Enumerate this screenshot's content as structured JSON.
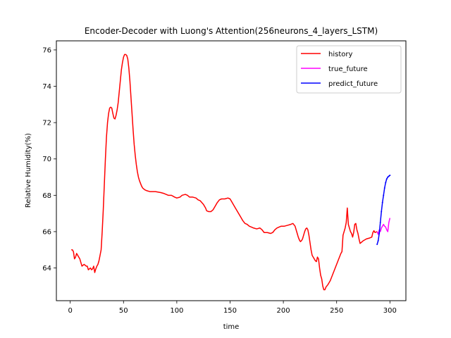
{
  "chart_data": {
    "type": "line",
    "title": "Encoder-Decoder with Luong's Attention(256neurons_4_layers_LSTM)",
    "xlabel": "time",
    "ylabel": "Relative Humidity(%)",
    "xlim": [
      -13,
      315
    ],
    "ylim": [
      62.2,
      76.5
    ],
    "xticks": [
      0,
      50,
      100,
      150,
      200,
      250,
      300
    ],
    "yticks": [
      64,
      66,
      68,
      70,
      72,
      74,
      76
    ],
    "grid": false,
    "legend_position": "top-right",
    "series": [
      {
        "name": "history",
        "color": "#ff0000",
        "points": [
          [
            1,
            65.0
          ],
          [
            2,
            65.0
          ],
          [
            3,
            64.9
          ],
          [
            4,
            64.5
          ],
          [
            5,
            64.6
          ],
          [
            6,
            64.8
          ],
          [
            7,
            64.7
          ],
          [
            8,
            64.6
          ],
          [
            9,
            64.5
          ],
          [
            10,
            64.3
          ],
          [
            11,
            64.1
          ],
          [
            12,
            64.15
          ],
          [
            13,
            64.2
          ],
          [
            14,
            64.15
          ],
          [
            15,
            64.1
          ],
          [
            16,
            64.1
          ],
          [
            17,
            63.9
          ],
          [
            18,
            63.95
          ],
          [
            19,
            64.0
          ],
          [
            20,
            63.9
          ],
          [
            21,
            63.95
          ],
          [
            22,
            64.1
          ],
          [
            23,
            63.75
          ],
          [
            24,
            63.95
          ],
          [
            25,
            64.1
          ],
          [
            26,
            64.2
          ],
          [
            27,
            64.4
          ],
          [
            28,
            64.7
          ],
          [
            29,
            65.0
          ],
          [
            30,
            66.0
          ],
          [
            31,
            67.2
          ],
          [
            32,
            68.6
          ],
          [
            33,
            70.0
          ],
          [
            34,
            71.2
          ],
          [
            35,
            72.0
          ],
          [
            36,
            72.5
          ],
          [
            37,
            72.8
          ],
          [
            38,
            72.85
          ],
          [
            39,
            72.8
          ],
          [
            40,
            72.5
          ],
          [
            41,
            72.25
          ],
          [
            42,
            72.2
          ],
          [
            43,
            72.4
          ],
          [
            44,
            72.7
          ],
          [
            45,
            73.1
          ],
          [
            46,
            73.7
          ],
          [
            47,
            74.3
          ],
          [
            48,
            74.9
          ],
          [
            49,
            75.3
          ],
          [
            50,
            75.6
          ],
          [
            51,
            75.75
          ],
          [
            52,
            75.75
          ],
          [
            53,
            75.7
          ],
          [
            54,
            75.5
          ],
          [
            55,
            75.0
          ],
          [
            56,
            74.3
          ],
          [
            57,
            73.4
          ],
          [
            58,
            72.5
          ],
          [
            59,
            71.6
          ],
          [
            60,
            70.8
          ],
          [
            61,
            70.2
          ],
          [
            62,
            69.7
          ],
          [
            63,
            69.3
          ],
          [
            64,
            69.0
          ],
          [
            65,
            68.8
          ],
          [
            66,
            68.65
          ],
          [
            67,
            68.5
          ],
          [
            68,
            68.4
          ],
          [
            69,
            68.35
          ],
          [
            70,
            68.3
          ],
          [
            72,
            68.25
          ],
          [
            75,
            68.2
          ],
          [
            80,
            68.2
          ],
          [
            85,
            68.15
          ],
          [
            88,
            68.1
          ],
          [
            90,
            68.05
          ],
          [
            92,
            68.0
          ],
          [
            95,
            68.0
          ],
          [
            98,
            67.9
          ],
          [
            100,
            67.85
          ],
          [
            103,
            67.9
          ],
          [
            105,
            68.0
          ],
          [
            108,
            68.05
          ],
          [
            110,
            68.0
          ],
          [
            112,
            67.9
          ],
          [
            115,
            67.9
          ],
          [
            118,
            67.85
          ],
          [
            120,
            67.75
          ],
          [
            122,
            67.7
          ],
          [
            125,
            67.5
          ],
          [
            127,
            67.3
          ],
          [
            128,
            67.15
          ],
          [
            130,
            67.1
          ],
          [
            132,
            67.1
          ],
          [
            134,
            67.2
          ],
          [
            136,
            67.4
          ],
          [
            138,
            67.6
          ],
          [
            140,
            67.75
          ],
          [
            142,
            67.8
          ],
          [
            145,
            67.8
          ],
          [
            148,
            67.85
          ],
          [
            150,
            67.8
          ],
          [
            152,
            67.6
          ],
          [
            154,
            67.4
          ],
          [
            156,
            67.2
          ],
          [
            158,
            67.0
          ],
          [
            160,
            66.8
          ],
          [
            162,
            66.6
          ],
          [
            164,
            66.45
          ],
          [
            166,
            66.4
          ],
          [
            168,
            66.3
          ],
          [
            170,
            66.25
          ],
          [
            172,
            66.2
          ],
          [
            175,
            66.15
          ],
          [
            178,
            66.2
          ],
          [
            180,
            66.1
          ],
          [
            182,
            65.95
          ],
          [
            185,
            65.95
          ],
          [
            188,
            65.9
          ],
          [
            190,
            65.95
          ],
          [
            192,
            66.1
          ],
          [
            194,
            66.2
          ],
          [
            196,
            66.25
          ],
          [
            198,
            66.3
          ],
          [
            201,
            66.3
          ],
          [
            204,
            66.35
          ],
          [
            207,
            66.4
          ],
          [
            209,
            66.45
          ],
          [
            211,
            66.3
          ],
          [
            212,
            66.1
          ],
          [
            213,
            65.9
          ],
          [
            214,
            65.7
          ],
          [
            215,
            65.55
          ],
          [
            216,
            65.45
          ],
          [
            217,
            65.5
          ],
          [
            218,
            65.6
          ],
          [
            219,
            65.8
          ],
          [
            220,
            66.0
          ],
          [
            221,
            66.15
          ],
          [
            222,
            66.2
          ],
          [
            223,
            66.1
          ],
          [
            224,
            65.8
          ],
          [
            225,
            65.4
          ],
          [
            226,
            65.0
          ],
          [
            227,
            64.7
          ],
          [
            228,
            64.6
          ],
          [
            229,
            64.5
          ],
          [
            230,
            64.4
          ],
          [
            231,
            64.35
          ],
          [
            232,
            64.6
          ],
          [
            233,
            64.5
          ],
          [
            234,
            64.0
          ],
          [
            235,
            63.6
          ],
          [
            236,
            63.4
          ],
          [
            237,
            63.0
          ],
          [
            238,
            62.8
          ],
          [
            239,
            62.8
          ],
          [
            240,
            62.95
          ],
          [
            242,
            63.1
          ],
          [
            244,
            63.3
          ],
          [
            246,
            63.6
          ],
          [
            248,
            63.9
          ],
          [
            250,
            64.2
          ],
          [
            252,
            64.5
          ],
          [
            254,
            64.8
          ],
          [
            255,
            64.9
          ],
          [
            256,
            65.8
          ],
          [
            257,
            66.0
          ],
          [
            258,
            66.2
          ],
          [
            259,
            66.5
          ],
          [
            260,
            67.3
          ],
          [
            261,
            66.4
          ],
          [
            262,
            66.2
          ],
          [
            263,
            66.0
          ],
          [
            264,
            65.9
          ],
          [
            265,
            65.7
          ],
          [
            266,
            65.95
          ],
          [
            267,
            66.4
          ],
          [
            268,
            66.45
          ],
          [
            269,
            66.1
          ],
          [
            270,
            65.9
          ],
          [
            271,
            65.6
          ],
          [
            272,
            65.35
          ],
          [
            273,
            65.4
          ],
          [
            275,
            65.5
          ],
          [
            278,
            65.6
          ],
          [
            281,
            65.65
          ],
          [
            283,
            65.7
          ],
          [
            284,
            65.95
          ],
          [
            285,
            66.05
          ],
          [
            286,
            65.95
          ],
          [
            288,
            66.0
          ]
        ]
      },
      {
        "name": "true_future",
        "color": "#ff00ff",
        "points": [
          [
            288,
            66.0
          ],
          [
            289,
            65.85
          ],
          [
            290,
            66.1
          ],
          [
            291,
            66.0
          ],
          [
            292,
            66.2
          ],
          [
            293,
            66.3
          ],
          [
            294,
            66.4
          ],
          [
            295,
            66.3
          ],
          [
            296,
            66.25
          ],
          [
            297,
            66.1
          ],
          [
            298,
            66.0
          ],
          [
            299,
            66.5
          ],
          [
            300,
            66.75
          ]
        ]
      },
      {
        "name": "predict_future",
        "color": "#0000ff",
        "points": [
          [
            288,
            65.3
          ],
          [
            289,
            65.5
          ],
          [
            290,
            65.9
          ],
          [
            291,
            66.5
          ],
          [
            292,
            67.1
          ],
          [
            293,
            67.6
          ],
          [
            294,
            68.0
          ],
          [
            295,
            68.4
          ],
          [
            296,
            68.7
          ],
          [
            297,
            68.9
          ],
          [
            298,
            69.0
          ],
          [
            299,
            69.05
          ],
          [
            300,
            69.1
          ]
        ]
      }
    ]
  }
}
